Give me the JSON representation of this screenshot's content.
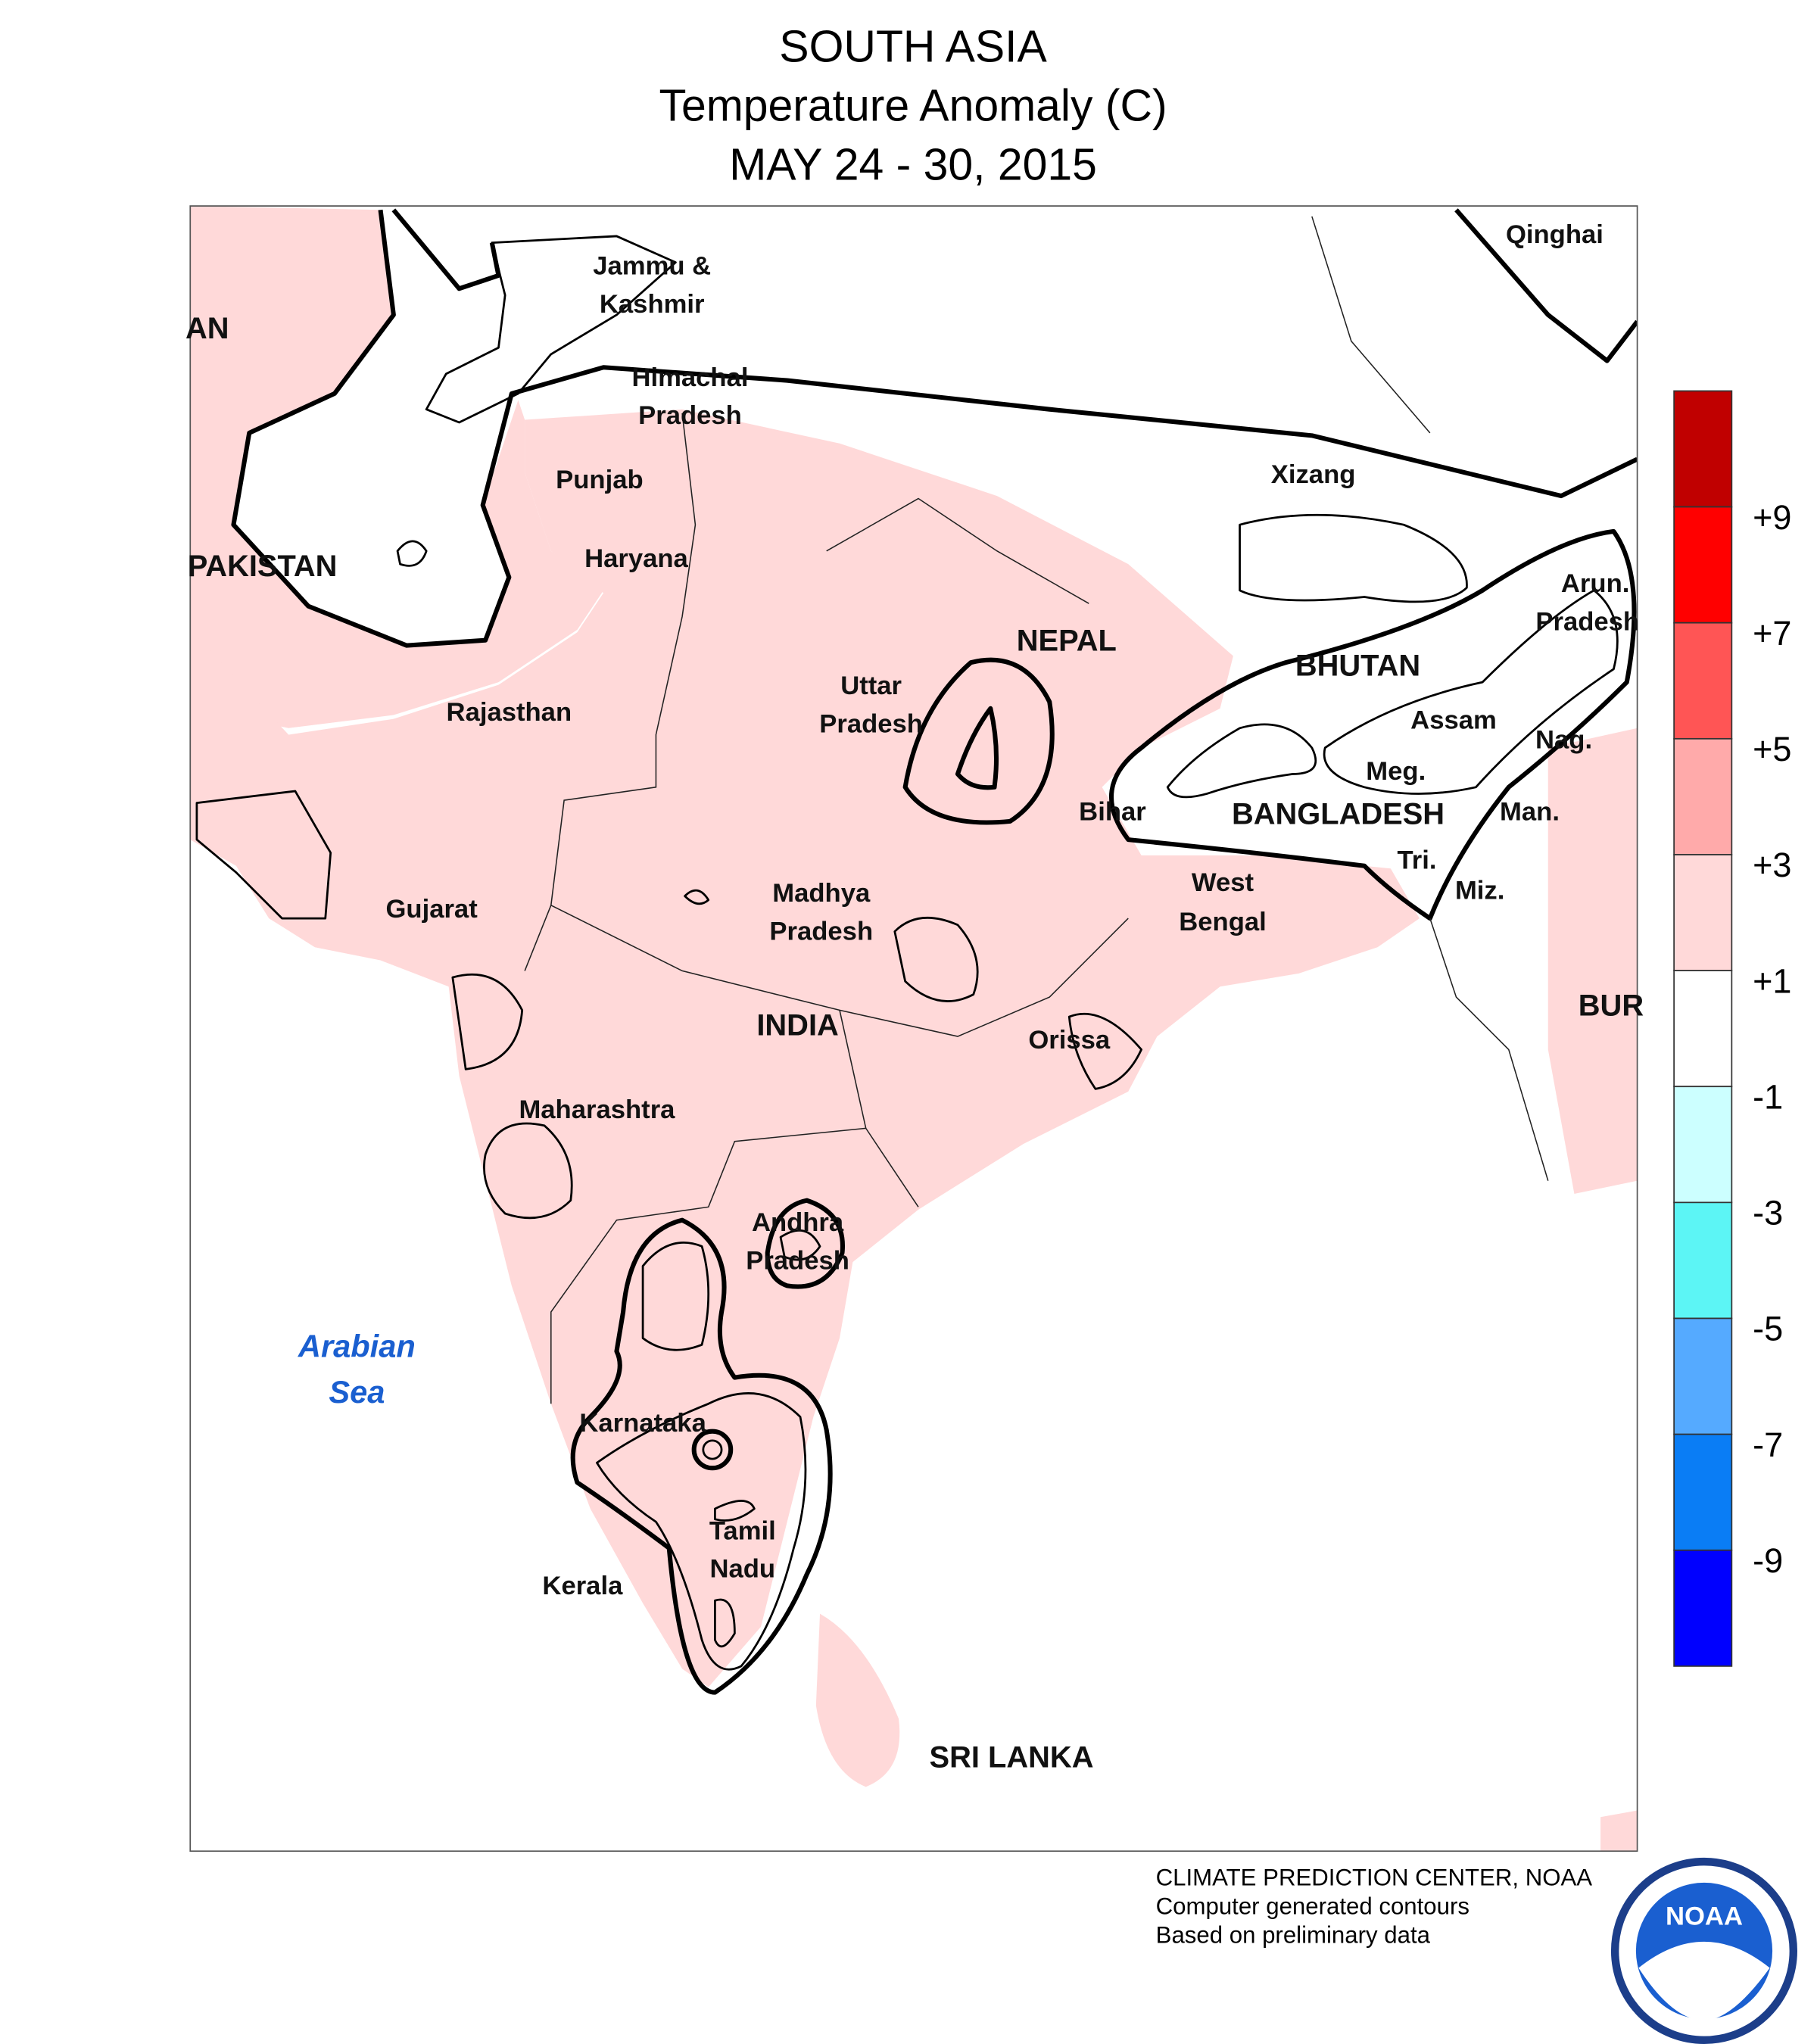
{
  "header": {
    "title": "SOUTH ASIA",
    "subtitle": "Temperature Anomaly (C)",
    "dates": "MAY 24 - 30, 2015"
  },
  "map": {
    "labels": [
      "Qinghai",
      "AN",
      "Jammu &",
      "Kashmir",
      "Himachal",
      "Pradesh",
      "Punjab",
      "Xizang",
      "PAKISTAN",
      "Haryana",
      "Arun.",
      "Pradesh",
      "NEPAL",
      "BHUTAN",
      "Uttar",
      "Pradesh",
      "Rajasthan",
      "Assam",
      "Nag.",
      "Meg.",
      "Bihar",
      "BANGLADESH",
      "Man.",
      "West",
      "Bengal",
      "Tri.",
      "Miz.",
      "Gujarat",
      "Madhya",
      "Pradesh",
      "INDIA",
      "BUR",
      "Orissa",
      "Maharashtra",
      "Andhra",
      "Pradesh",
      "Karnataka",
      "Tamil",
      "Nadu",
      "Kerala",
      "SRI LANKA"
    ],
    "sea_labels": [
      "Arabian",
      "Sea"
    ]
  },
  "legend": {
    "colors": [
      "#c00000",
      "#ff0000",
      "#ff5555",
      "#ffaaaa",
      "#ffd9d9",
      "#ffffff",
      "#ccffff",
      "#5cf5f5",
      "#55aaff",
      "#0a7df5",
      "#0000ff"
    ],
    "labels": [
      "+9",
      "+7",
      "+5",
      "+3",
      "+1",
      "-1",
      "-3",
      "-5",
      "-7",
      "-9"
    ]
  },
  "footer": {
    "lines": [
      "CLIMATE PREDICTION CENTER, NOAA",
      "Computer generated contours",
      "Based on preliminary data"
    ],
    "logo_text": "NOAA"
  }
}
